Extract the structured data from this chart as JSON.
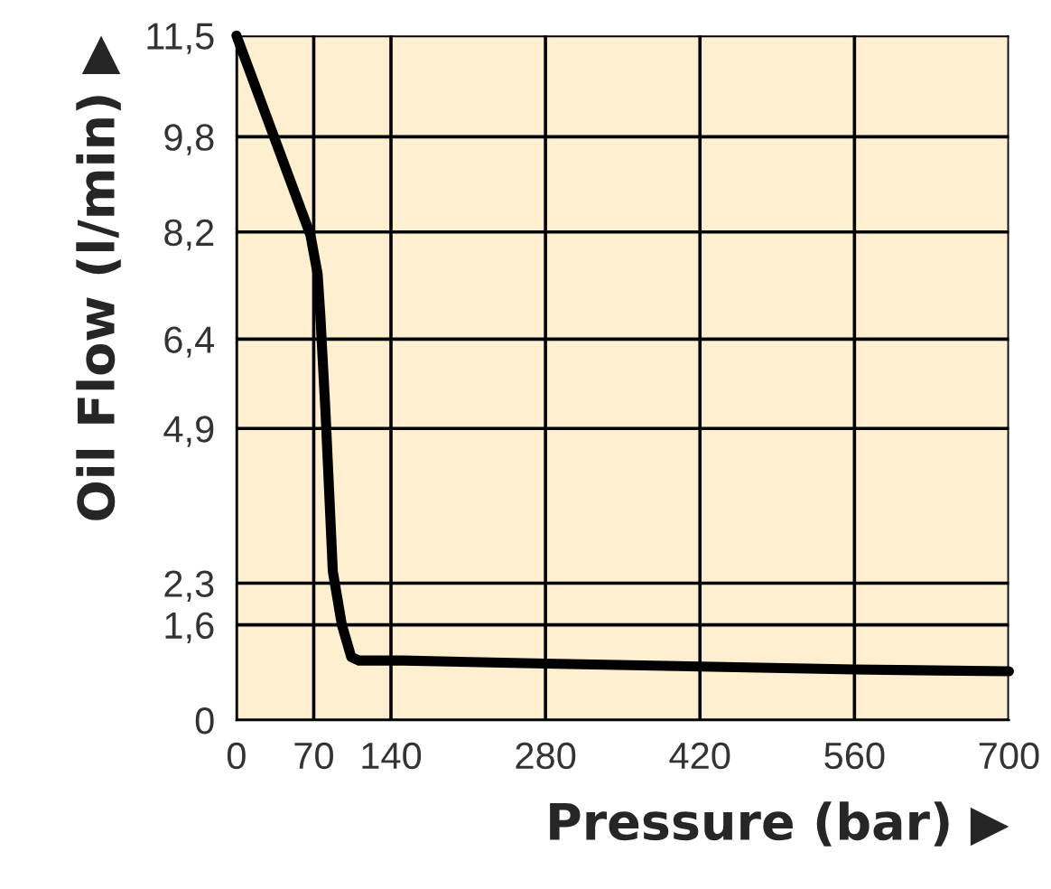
{
  "chart_data": {
    "type": "line",
    "xlabel": "Pressure (bar) ▶",
    "ylabel": "Oil Flow (l/min) ▶",
    "x": [
      0,
      67,
      73.5,
      76,
      80.6,
      87.3,
      95.5,
      104,
      111,
      151,
      280,
      420,
      560,
      700
    ],
    "series": [
      {
        "color": "#000000",
        "values": [
          11.5,
          8.15,
          7.5,
          6.8,
          5.2,
          2.5,
          1.6,
          1.06,
          1.0,
          1.0,
          0.95,
          0.9,
          0.85,
          0.82
        ]
      }
    ],
    "xlim": [
      0,
      700
    ],
    "ylim": [
      0,
      11.5
    ],
    "xticks": [
      0,
      70,
      140,
      280,
      420,
      560,
      700
    ],
    "yticks": [
      0,
      {
        "value": 1.6,
        "label": "1,6"
      },
      {
        "value": 2.3,
        "label": "2,3"
      },
      {
        "value": 4.9,
        "label": "4,9"
      },
      {
        "value": 6.4,
        "label": "6,4"
      },
      {
        "value": 8.2,
        "label": "8,2"
      },
      {
        "value": 9.8,
        "label": "9,8"
      },
      {
        "value": 11.5,
        "label": "11,5"
      }
    ],
    "grid": true,
    "marker": "none",
    "line_style": "solid",
    "legend": false
  }
}
